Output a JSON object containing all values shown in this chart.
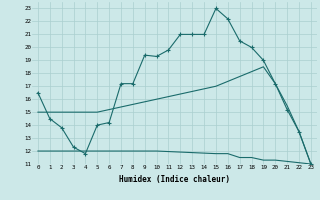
{
  "xlabel": "Humidex (Indice chaleur)",
  "bg_color": "#cce8e8",
  "grid_color": "#aacfcf",
  "line_color": "#1a6b6b",
  "xlim": [
    -0.5,
    23.5
  ],
  "ylim": [
    11,
    23.5
  ],
  "line1_x": [
    0,
    1,
    2,
    3,
    4,
    5,
    6,
    7,
    8,
    9,
    10,
    11,
    12,
    13,
    14,
    15,
    16,
    17,
    18,
    19,
    20,
    21,
    22,
    23
  ],
  "line1_y": [
    16.5,
    14.5,
    13.8,
    12.3,
    11.8,
    14.0,
    14.2,
    17.2,
    17.2,
    19.4,
    19.3,
    19.8,
    21.0,
    21.0,
    21.0,
    23.0,
    22.2,
    20.5,
    20.0,
    19.0,
    17.2,
    15.2,
    13.5,
    11.0
  ],
  "line2_x": [
    0,
    5,
    10,
    15,
    19,
    20,
    21,
    22,
    23
  ],
  "line2_y": [
    15.0,
    15.0,
    16.0,
    17.0,
    18.5,
    17.2,
    15.5,
    13.5,
    11.0
  ],
  "line3_x": [
    0,
    5,
    10,
    15,
    16,
    17,
    18,
    19,
    20,
    21,
    22,
    23
  ],
  "line3_y": [
    12.0,
    12.0,
    12.0,
    11.8,
    11.8,
    11.5,
    11.5,
    11.3,
    11.3,
    11.2,
    11.1,
    11.0
  ],
  "yticks": [
    11,
    12,
    13,
    14,
    15,
    16,
    17,
    18,
    19,
    20,
    21,
    22,
    23
  ],
  "xticks": [
    0,
    1,
    2,
    3,
    4,
    5,
    6,
    7,
    8,
    9,
    10,
    11,
    12,
    13,
    14,
    15,
    16,
    17,
    18,
    19,
    20,
    21,
    22,
    23
  ]
}
